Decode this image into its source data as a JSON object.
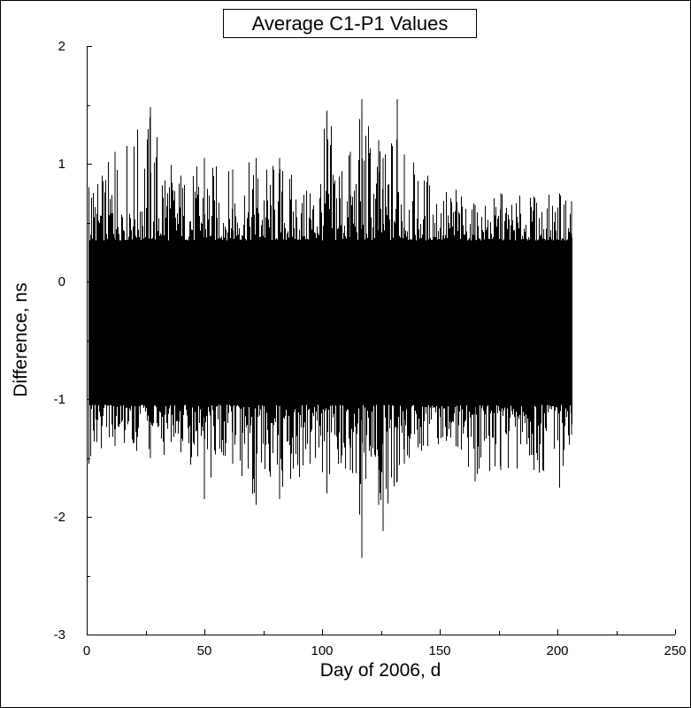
{
  "chart_data": {
    "type": "line",
    "title": "Average C1-P1 Values",
    "xlabel": "Day of 2006, d",
    "ylabel": "Difference, ns",
    "xlim": [
      0,
      250
    ],
    "ylim": [
      -3,
      2
    ],
    "x_ticks": [
      "0",
      "50",
      "100",
      "150",
      "200",
      "250"
    ],
    "y_ticks": [
      "2",
      "1",
      "0",
      "-1",
      "-2",
      "-3"
    ],
    "grid": false,
    "legend": "none",
    "line_color": "#000000",
    "series": [
      {
        "x": [
          1,
          12,
          27,
          40,
          50,
          62,
          72,
          82,
          95,
          102,
          112,
          117,
          124,
          126,
          132,
          135,
          145,
          157,
          165,
          176,
          190,
          201,
          206
        ],
        "y_max": [
          0.8,
          1.1,
          1.48,
          0.9,
          1.05,
          0.95,
          1.05,
          1.05,
          0.75,
          1.45,
          1.1,
          1.55,
          1.2,
          1.05,
          1.55,
          1.08,
          0.9,
          0.78,
          0.65,
          0.75,
          0.72,
          0.75,
          0.68
        ],
        "y_min": [
          -1.55,
          -1.4,
          -1.5,
          -1.45,
          -1.85,
          -1.55,
          -1.9,
          -1.85,
          -1.55,
          -1.8,
          -1.6,
          -2.35,
          -1.9,
          -2.12,
          -1.7,
          -1.55,
          -1.4,
          -1.4,
          -1.7,
          -1.6,
          -1.6,
          -1.75,
          -1.3
        ],
        "band_upper": 0.35,
        "band_lower": -1.05
      }
    ]
  }
}
